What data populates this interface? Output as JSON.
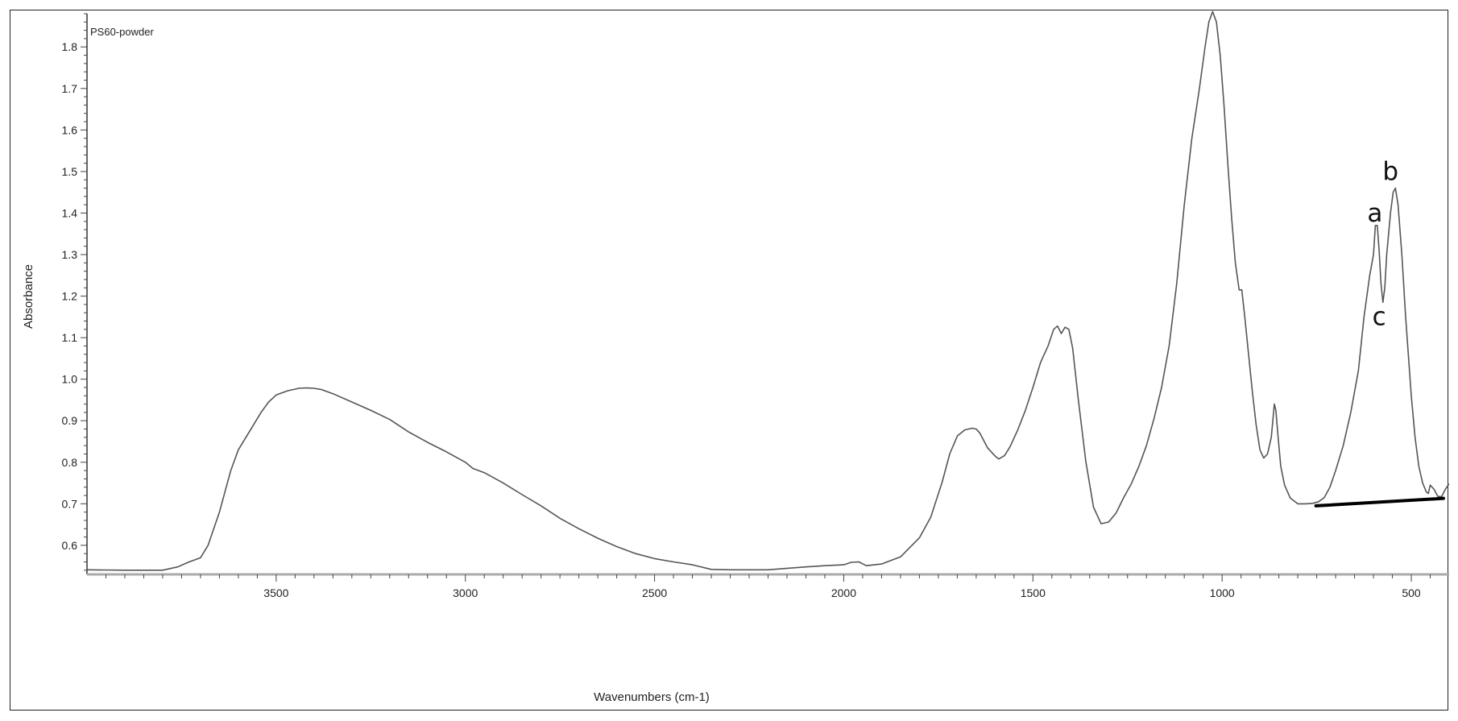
{
  "chart_data": {
    "type": "line",
    "title": "PS60-powder",
    "xlabel": "Wavenumbers (cm-1)",
    "ylabel": "Absorbance",
    "xlim": [
      4000,
      400
    ],
    "ylim": [
      0.53,
      1.88
    ],
    "x_reversed": true,
    "x_ticks": [
      3500,
      3000,
      2500,
      2000,
      1500,
      1000,
      500
    ],
    "y_ticks": [
      0.6,
      0.7,
      0.8,
      0.9,
      1.0,
      1.1,
      1.2,
      1.3,
      1.4,
      1.5,
      1.6,
      1.7,
      1.8
    ],
    "grid": false,
    "series": [
      {
        "color": "#555555",
        "x": [
          4000,
          3900,
          3800,
          3760,
          3730,
          3700,
          3680,
          3650,
          3620,
          3600,
          3580,
          3560,
          3540,
          3520,
          3500,
          3470,
          3440,
          3420,
          3400,
          3380,
          3350,
          3300,
          3250,
          3200,
          3150,
          3100,
          3050,
          3000,
          2980,
          2950,
          2900,
          2850,
          2800,
          2750,
          2700,
          2650,
          2600,
          2550,
          2500,
          2450,
          2400,
          2350,
          2300,
          2200,
          2100,
          2050,
          2000,
          1980,
          1960,
          1940,
          1900,
          1850,
          1800,
          1770,
          1740,
          1720,
          1700,
          1680,
          1660,
          1650,
          1640,
          1620,
          1600,
          1590,
          1575,
          1560,
          1540,
          1520,
          1500,
          1480,
          1460,
          1445,
          1435,
          1425,
          1415,
          1405,
          1395,
          1380,
          1360,
          1340,
          1320,
          1300,
          1280,
          1260,
          1240,
          1220,
          1200,
          1180,
          1160,
          1140,
          1120,
          1100,
          1080,
          1060,
          1045,
          1035,
          1025,
          1015,
          1005,
          995,
          985,
          975,
          965,
          955,
          948,
          940,
          930,
          920,
          910,
          900,
          890,
          880,
          870,
          862,
          858,
          852,
          845,
          835,
          820,
          800,
          780,
          760,
          745,
          730,
          715,
          700,
          680,
          660,
          640,
          625,
          610,
          600,
          595,
          590,
          585,
          580,
          575,
          570,
          565,
          555,
          548,
          542,
          535,
          525,
          515,
          500,
          490,
          480,
          470,
          460,
          455,
          450,
          440,
          430,
          420,
          410,
          400
        ],
        "y": [
          0.541,
          0.54,
          0.54,
          0.548,
          0.56,
          0.57,
          0.6,
          0.68,
          0.78,
          0.83,
          0.86,
          0.89,
          0.92,
          0.945,
          0.962,
          0.972,
          0.978,
          0.979,
          0.978,
          0.975,
          0.965,
          0.945,
          0.925,
          0.903,
          0.873,
          0.848,
          0.825,
          0.8,
          0.785,
          0.775,
          0.75,
          0.722,
          0.695,
          0.665,
          0.64,
          0.617,
          0.597,
          0.58,
          0.568,
          0.56,
          0.553,
          0.542,
          0.541,
          0.541,
          0.548,
          0.551,
          0.553,
          0.559,
          0.56,
          0.551,
          0.555,
          0.572,
          0.618,
          0.668,
          0.752,
          0.82,
          0.863,
          0.878,
          0.882,
          0.88,
          0.87,
          0.835,
          0.815,
          0.808,
          0.816,
          0.838,
          0.878,
          0.925,
          0.98,
          1.04,
          1.08,
          1.12,
          1.128,
          1.11,
          1.125,
          1.12,
          1.075,
          0.95,
          0.8,
          0.692,
          0.652,
          0.656,
          0.678,
          0.715,
          0.748,
          0.79,
          0.84,
          0.905,
          0.98,
          1.08,
          1.23,
          1.42,
          1.58,
          1.7,
          1.8,
          1.86,
          1.885,
          1.86,
          1.78,
          1.66,
          1.52,
          1.39,
          1.28,
          1.215,
          1.215,
          1.15,
          1.06,
          0.97,
          0.89,
          0.83,
          0.81,
          0.82,
          0.86,
          0.94,
          0.925,
          0.86,
          0.79,
          0.745,
          0.714,
          0.7,
          0.7,
          0.701,
          0.705,
          0.715,
          0.74,
          0.78,
          0.84,
          0.92,
          1.02,
          1.15,
          1.25,
          1.3,
          1.37,
          1.37,
          1.31,
          1.23,
          1.185,
          1.22,
          1.3,
          1.4,
          1.45,
          1.46,
          1.42,
          1.3,
          1.15,
          0.96,
          0.86,
          0.79,
          0.75,
          0.728,
          0.725,
          0.745,
          0.735,
          0.718,
          0.717,
          0.735,
          0.748
        ]
      }
    ],
    "annotations": [
      {
        "text": "a",
        "x": 596,
        "y": 1.38
      },
      {
        "text": "b",
        "x": 555,
        "y": 1.48
      },
      {
        "text": "c",
        "x": 585,
        "y": 1.13
      }
    ],
    "baseline": {
      "x": [
        752,
        415
      ],
      "y": [
        0.695,
        0.713
      ],
      "color": "#000000"
    }
  }
}
